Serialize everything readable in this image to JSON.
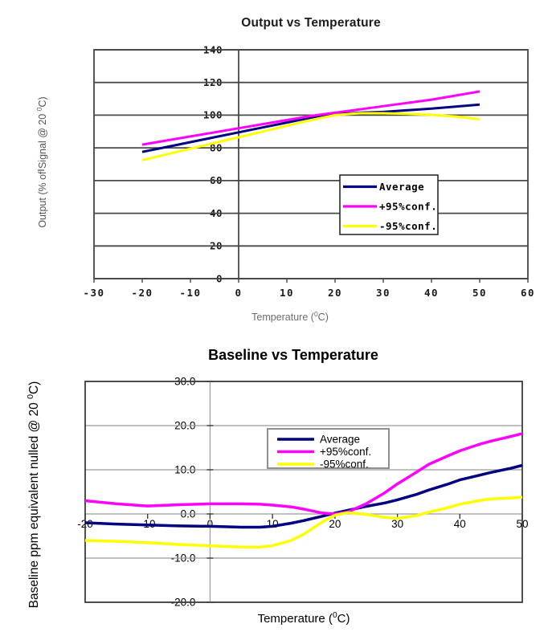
{
  "charts": [
    {
      "title": "Output vs Temperature",
      "xlabel_parts": {
        "pre": "Temperature (",
        "sup": "0",
        "post": "C)"
      },
      "ylabel_parts": {
        "pre": "Output (% of Signal @ 20 ",
        "sup": "0",
        "post": "C)"
      }
    },
    {
      "title": "Baseline vs Temperature",
      "xlabel_parts": {
        "pre": "Temperature (",
        "sup": "0",
        "post": "C)"
      },
      "ylabel_parts": {
        "pre": "Baseline ppm equivalent nulled @ 20 ",
        "sup": "0",
        "post": "C)"
      }
    }
  ],
  "chart_data": [
    {
      "type": "line",
      "title": "Output vs Temperature",
      "xlabel": "Temperature (⁰C)",
      "ylabel": "Output (% of Signal @ 20 ⁰C)",
      "xlim": [
        -30,
        60
      ],
      "ylim": [
        0,
        140
      ],
      "xticks": [
        -30,
        -20,
        -10,
        0,
        10,
        20,
        30,
        40,
        50,
        60
      ],
      "xtick_labels": [
        "-30",
        "-20",
        "-10",
        "0",
        "10",
        "20",
        "30",
        "40",
        "50",
        "60"
      ],
      "yticks": [
        140,
        120,
        100,
        80,
        60,
        40,
        20,
        0
      ],
      "ytick_labels": [
        "140",
        "120",
        "100",
        "80",
        "60",
        "40",
        "20",
        "0"
      ],
      "grid": "horizontal",
      "value_axis_at_x": 0,
      "legend_position": "inside-right",
      "grid_color": "#4a4a4a",
      "border_color": "#454545",
      "tick_label_color": "#1a1a1a",
      "series": [
        {
          "name": "Average",
          "color": "#000080",
          "x": [
            -20,
            -15,
            -10,
            -5,
            0,
            5,
            10,
            15,
            20,
            25,
            30,
            35,
            40,
            45,
            50
          ],
          "y": [
            77.5,
            80.5,
            83.5,
            86.5,
            89.5,
            92.5,
            95.5,
            98.5,
            100.5,
            101.5,
            102,
            103,
            104,
            105.2,
            106.5
          ]
        },
        {
          "name": "+95%conf.",
          "color": "#ff00ff",
          "x": [
            -20,
            -15,
            -10,
            -5,
            0,
            5,
            10,
            15,
            20,
            25,
            30,
            35,
            40,
            45,
            50
          ],
          "y": [
            82,
            84.5,
            87,
            89.5,
            92,
            94.5,
            97,
            99.5,
            101.5,
            103.5,
            105.5,
            107.5,
            109.5,
            112,
            114.5
          ]
        },
        {
          "name": "-95%conf.",
          "color": "#ffff00",
          "x": [
            -20,
            -15,
            -10,
            -5,
            0,
            5,
            10,
            15,
            20,
            25,
            30,
            35,
            40,
            45,
            50
          ],
          "y": [
            72.5,
            76,
            79.5,
            83,
            86.5,
            90,
            93.5,
            97,
            100,
            101.2,
            101.2,
            100.8,
            100.2,
            99.2,
            97.5
          ]
        }
      ]
    },
    {
      "type": "line",
      "title": "Baseline vs Temperature",
      "xlabel": "Temperature (⁰C)",
      "ylabel": "Baseline ppm equivalent nulled @ 20 ⁰C",
      "xlim": [
        -20,
        50
      ],
      "ylim": [
        -20,
        30
      ],
      "xticks": [
        -20,
        -10,
        0,
        10,
        20,
        30,
        40,
        50
      ],
      "xtick_labels": [
        "-20",
        "-10",
        "0",
        "10",
        "20",
        "30",
        "40",
        "50"
      ],
      "yticks": [
        30,
        20,
        10,
        0,
        -10,
        -20
      ],
      "ytick_labels": [
        "30.0",
        "20.0",
        "10.0",
        "0.0",
        "-10.0",
        "-20.0"
      ],
      "grid": "horizontal",
      "value_axis_at_x": 0,
      "legend_position": "inside-top",
      "grid_color": "#9a9a9a",
      "border_color": "#3c3c3c",
      "tick_label_color": "#000000",
      "series": [
        {
          "name": "Average",
          "color": "#000080",
          "x": [
            -20,
            -15,
            -10,
            -5,
            0,
            5,
            8,
            10,
            13,
            15,
            18,
            20,
            22,
            25,
            28,
            30,
            33,
            35,
            38,
            40,
            43,
            45,
            48,
            50
          ],
          "y": [
            -2,
            -2.3,
            -2.5,
            -2.7,
            -2.8,
            -3,
            -3,
            -2.8,
            -2.1,
            -1.5,
            -0.5,
            0.2,
            0.8,
            1.7,
            2.5,
            3.2,
            4.4,
            5.4,
            6.7,
            7.7,
            8.7,
            9.4,
            10.3,
            11
          ]
        },
        {
          "name": "+95%conf.",
          "color": "#ff00ff",
          "x": [
            -20,
            -15,
            -10,
            -5,
            0,
            5,
            8,
            10,
            13,
            15,
            18,
            20,
            22,
            25,
            28,
            30,
            33,
            35,
            38,
            40,
            43,
            45,
            48,
            50
          ],
          "y": [
            3,
            2.3,
            1.8,
            2.1,
            2.3,
            2.3,
            2.2,
            2,
            1.6,
            1.1,
            0.2,
            0,
            0.4,
            2.3,
            4.8,
            6.8,
            9.4,
            11.2,
            13.1,
            14.3,
            15.7,
            16.5,
            17.5,
            18.2
          ]
        },
        {
          "name": "-95%conf.",
          "color": "#ffff00",
          "x": [
            -20,
            -15,
            -10,
            -5,
            0,
            5,
            8,
            10,
            13,
            15,
            18,
            20,
            22,
            25,
            28,
            30,
            33,
            35,
            38,
            40,
            43,
            45,
            48,
            50
          ],
          "y": [
            -6,
            -6.2,
            -6.5,
            -6.9,
            -7.2,
            -7.5,
            -7.5,
            -7.2,
            -6,
            -4.6,
            -1.8,
            -0.3,
            0.3,
            -0.1,
            -0.8,
            -1,
            -0.4,
            0.4,
            1.4,
            2.2,
            3,
            3.4,
            3.6,
            3.8
          ]
        }
      ]
    }
  ]
}
